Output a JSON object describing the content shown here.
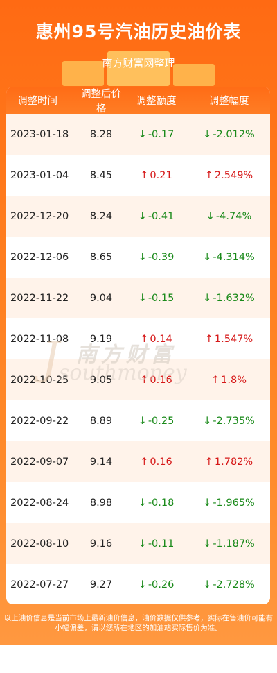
{
  "header": {
    "title": "惠州95号汽油历史油价表",
    "subtitle": "南方财富网整理"
  },
  "table": {
    "columns": [
      "调整时间",
      "调整后价格",
      "调整额度",
      "调整幅度"
    ],
    "rows": [
      {
        "date": "2023-01-18",
        "price": "8.28",
        "amount": "-0.17",
        "pct": "-2.012%",
        "dir": "down"
      },
      {
        "date": "2023-01-04",
        "price": "8.45",
        "amount": "0.21",
        "pct": "2.549%",
        "dir": "up"
      },
      {
        "date": "2022-12-20",
        "price": "8.24",
        "amount": "-0.41",
        "pct": "-4.74%",
        "dir": "down"
      },
      {
        "date": "2022-12-06",
        "price": "8.65",
        "amount": "-0.39",
        "pct": "-4.314%",
        "dir": "down"
      },
      {
        "date": "2022-11-22",
        "price": "9.04",
        "amount": "-0.15",
        "pct": "-1.632%",
        "dir": "down"
      },
      {
        "date": "2022-11-08",
        "price": "9.19",
        "amount": "0.14",
        "pct": "1.547%",
        "dir": "up"
      },
      {
        "date": "2022-10-25",
        "price": "9.05",
        "amount": "0.16",
        "pct": "1.8%",
        "dir": "up"
      },
      {
        "date": "2022-09-22",
        "price": "8.89",
        "amount": "-0.25",
        "pct": "-2.735%",
        "dir": "down"
      },
      {
        "date": "2022-09-07",
        "price": "9.14",
        "amount": "0.16",
        "pct": "1.782%",
        "dir": "up"
      },
      {
        "date": "2022-08-24",
        "price": "8.98",
        "amount": "-0.18",
        "pct": "-1.965%",
        "dir": "down"
      },
      {
        "date": "2022-08-10",
        "price": "9.16",
        "amount": "-0.11",
        "pct": "-1.187%",
        "dir": "down"
      },
      {
        "date": "2022-07-27",
        "price": "9.27",
        "amount": "-0.26",
        "pct": "-2.728%",
        "dir": "down"
      }
    ]
  },
  "watermark": {
    "cn": "南方财富",
    "en": "southmoney"
  },
  "footer": {
    "note": "以上油价信息是当前市场上最新油价信息，油价数据仅供参考，实际在售油价可能有小幅偏差，请以您所在地区的加油站实际售价为准。"
  },
  "colors": {
    "brand_orange": "#ff6a13",
    "down_green": "#1a8a1a",
    "up_red": "#d61818",
    "row_tint": "#fff3ea"
  },
  "icons": {
    "up": "↑",
    "down": "↓"
  }
}
